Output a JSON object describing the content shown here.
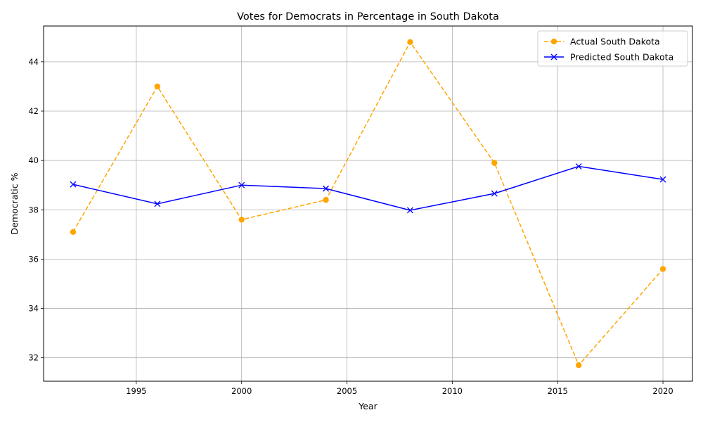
{
  "chart_data": {
    "type": "line",
    "title": "Votes for Democrats in Percentage in South Dakota",
    "xlabel": "Year",
    "ylabel": "Democratic %",
    "xlim": [
      1990.6,
      2021.4
    ],
    "ylim": [
      31.05,
      45.45
    ],
    "x_ticks": [
      1995,
      2000,
      2005,
      2010,
      2015,
      2020
    ],
    "y_ticks": [
      32,
      34,
      36,
      38,
      40,
      42,
      44
    ],
    "grid": true,
    "legend_position": "top-right",
    "series": [
      {
        "name": "Actual South Dakota",
        "color": "#ffa500",
        "line_style": "dashed",
        "marker": "circle",
        "x": [
          1992,
          1996,
          2000,
          2004,
          2008,
          2012,
          2016,
          2020
        ],
        "y": [
          37.1,
          43.0,
          37.6,
          38.4,
          44.8,
          39.9,
          31.7,
          35.6
        ]
      },
      {
        "name": "Predicted South Dakota",
        "color": "#0000ff",
        "line_style": "solid",
        "marker": "x",
        "x": [
          1992,
          1996,
          2000,
          2008,
          2012,
          2016,
          2020,
          2004
        ],
        "y": [
          39.03,
          38.24,
          39.0,
          37.98,
          38.66,
          39.76,
          39.23,
          38.86
        ]
      }
    ]
  }
}
